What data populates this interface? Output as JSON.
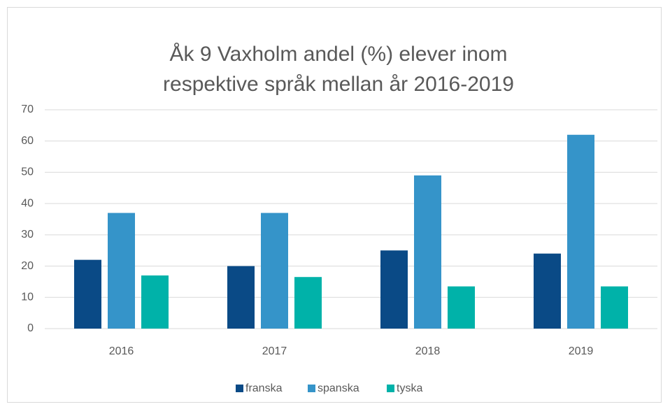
{
  "chart_data": {
    "type": "bar",
    "title": "Åk 9 Vaxholm andel (%) elever inom respektive språk mellan år 2016-2019",
    "categories": [
      "2016",
      "2017",
      "2018",
      "2019"
    ],
    "series": [
      {
        "name": "franska",
        "color": "#0a4a86",
        "values": [
          22,
          20,
          25,
          24
        ]
      },
      {
        "name": "spanska",
        "color": "#3594c9",
        "values": [
          37,
          37,
          49,
          62
        ]
      },
      {
        "name": "tyska",
        "color": "#00b2a9",
        "values": [
          17,
          16.5,
          13.5,
          13.5
        ]
      }
    ],
    "ylim": [
      0,
      70
    ],
    "yticks": [
      0,
      10,
      20,
      30,
      40,
      50,
      60,
      70
    ],
    "grid": true,
    "legend": "bottom"
  }
}
